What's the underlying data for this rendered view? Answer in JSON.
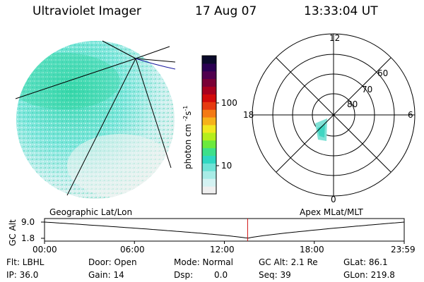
{
  "header": {
    "title": "Ultraviolet Imager",
    "date": "17 Aug 07",
    "time": "13:33:04 UT"
  },
  "colorbar": {
    "unit": "photon cm",
    "unit_exp1": "-2",
    "unit_s": "s",
    "unit_exp2": "-1",
    "ticks": [
      "100",
      "10"
    ],
    "colors": [
      "#efefef",
      "#d4f2f2",
      "#a8ece6",
      "#6fe3d6",
      "#2fd8c2",
      "#3de08a",
      "#6bea3c",
      "#b5ee1c",
      "#f1e820",
      "#f6b21a",
      "#f47a14",
      "#e63a10",
      "#d20a0a",
      "#a8001e",
      "#7a0035",
      "#50004e",
      "#2a0052",
      "#0a0a2a"
    ]
  },
  "polar": {
    "mlt_labels": [
      "12",
      "18",
      "6",
      "0"
    ],
    "lat_labels": [
      "60",
      "70",
      "80"
    ]
  },
  "timeline": {
    "ylabel": "GC Alt",
    "ytick_top": "9.0",
    "ytick_bottom": "1.8",
    "left_caption": "Geographic Lat/Lon",
    "right_caption": "Apex MLat/MLT",
    "xticks": [
      "00:00",
      "06:00",
      "12:00",
      "18:00",
      "23:59"
    ],
    "marker_hours": 13.55,
    "marker_color": "#d01010"
  },
  "info": {
    "filter": "Flt: LBHL",
    "ip": "IP: 36.0",
    "door": "Door: Open",
    "gain": "Gain: 14",
    "mode": "Mode: Normal",
    "dsp_label": "Dsp:",
    "dsp_value": "0.0",
    "gc_alt": "GC Alt: 2.1 Re",
    "seq": "Seq: 39",
    "glat": "GLat:  86.1",
    "glon": "GLon: 219.8"
  }
}
